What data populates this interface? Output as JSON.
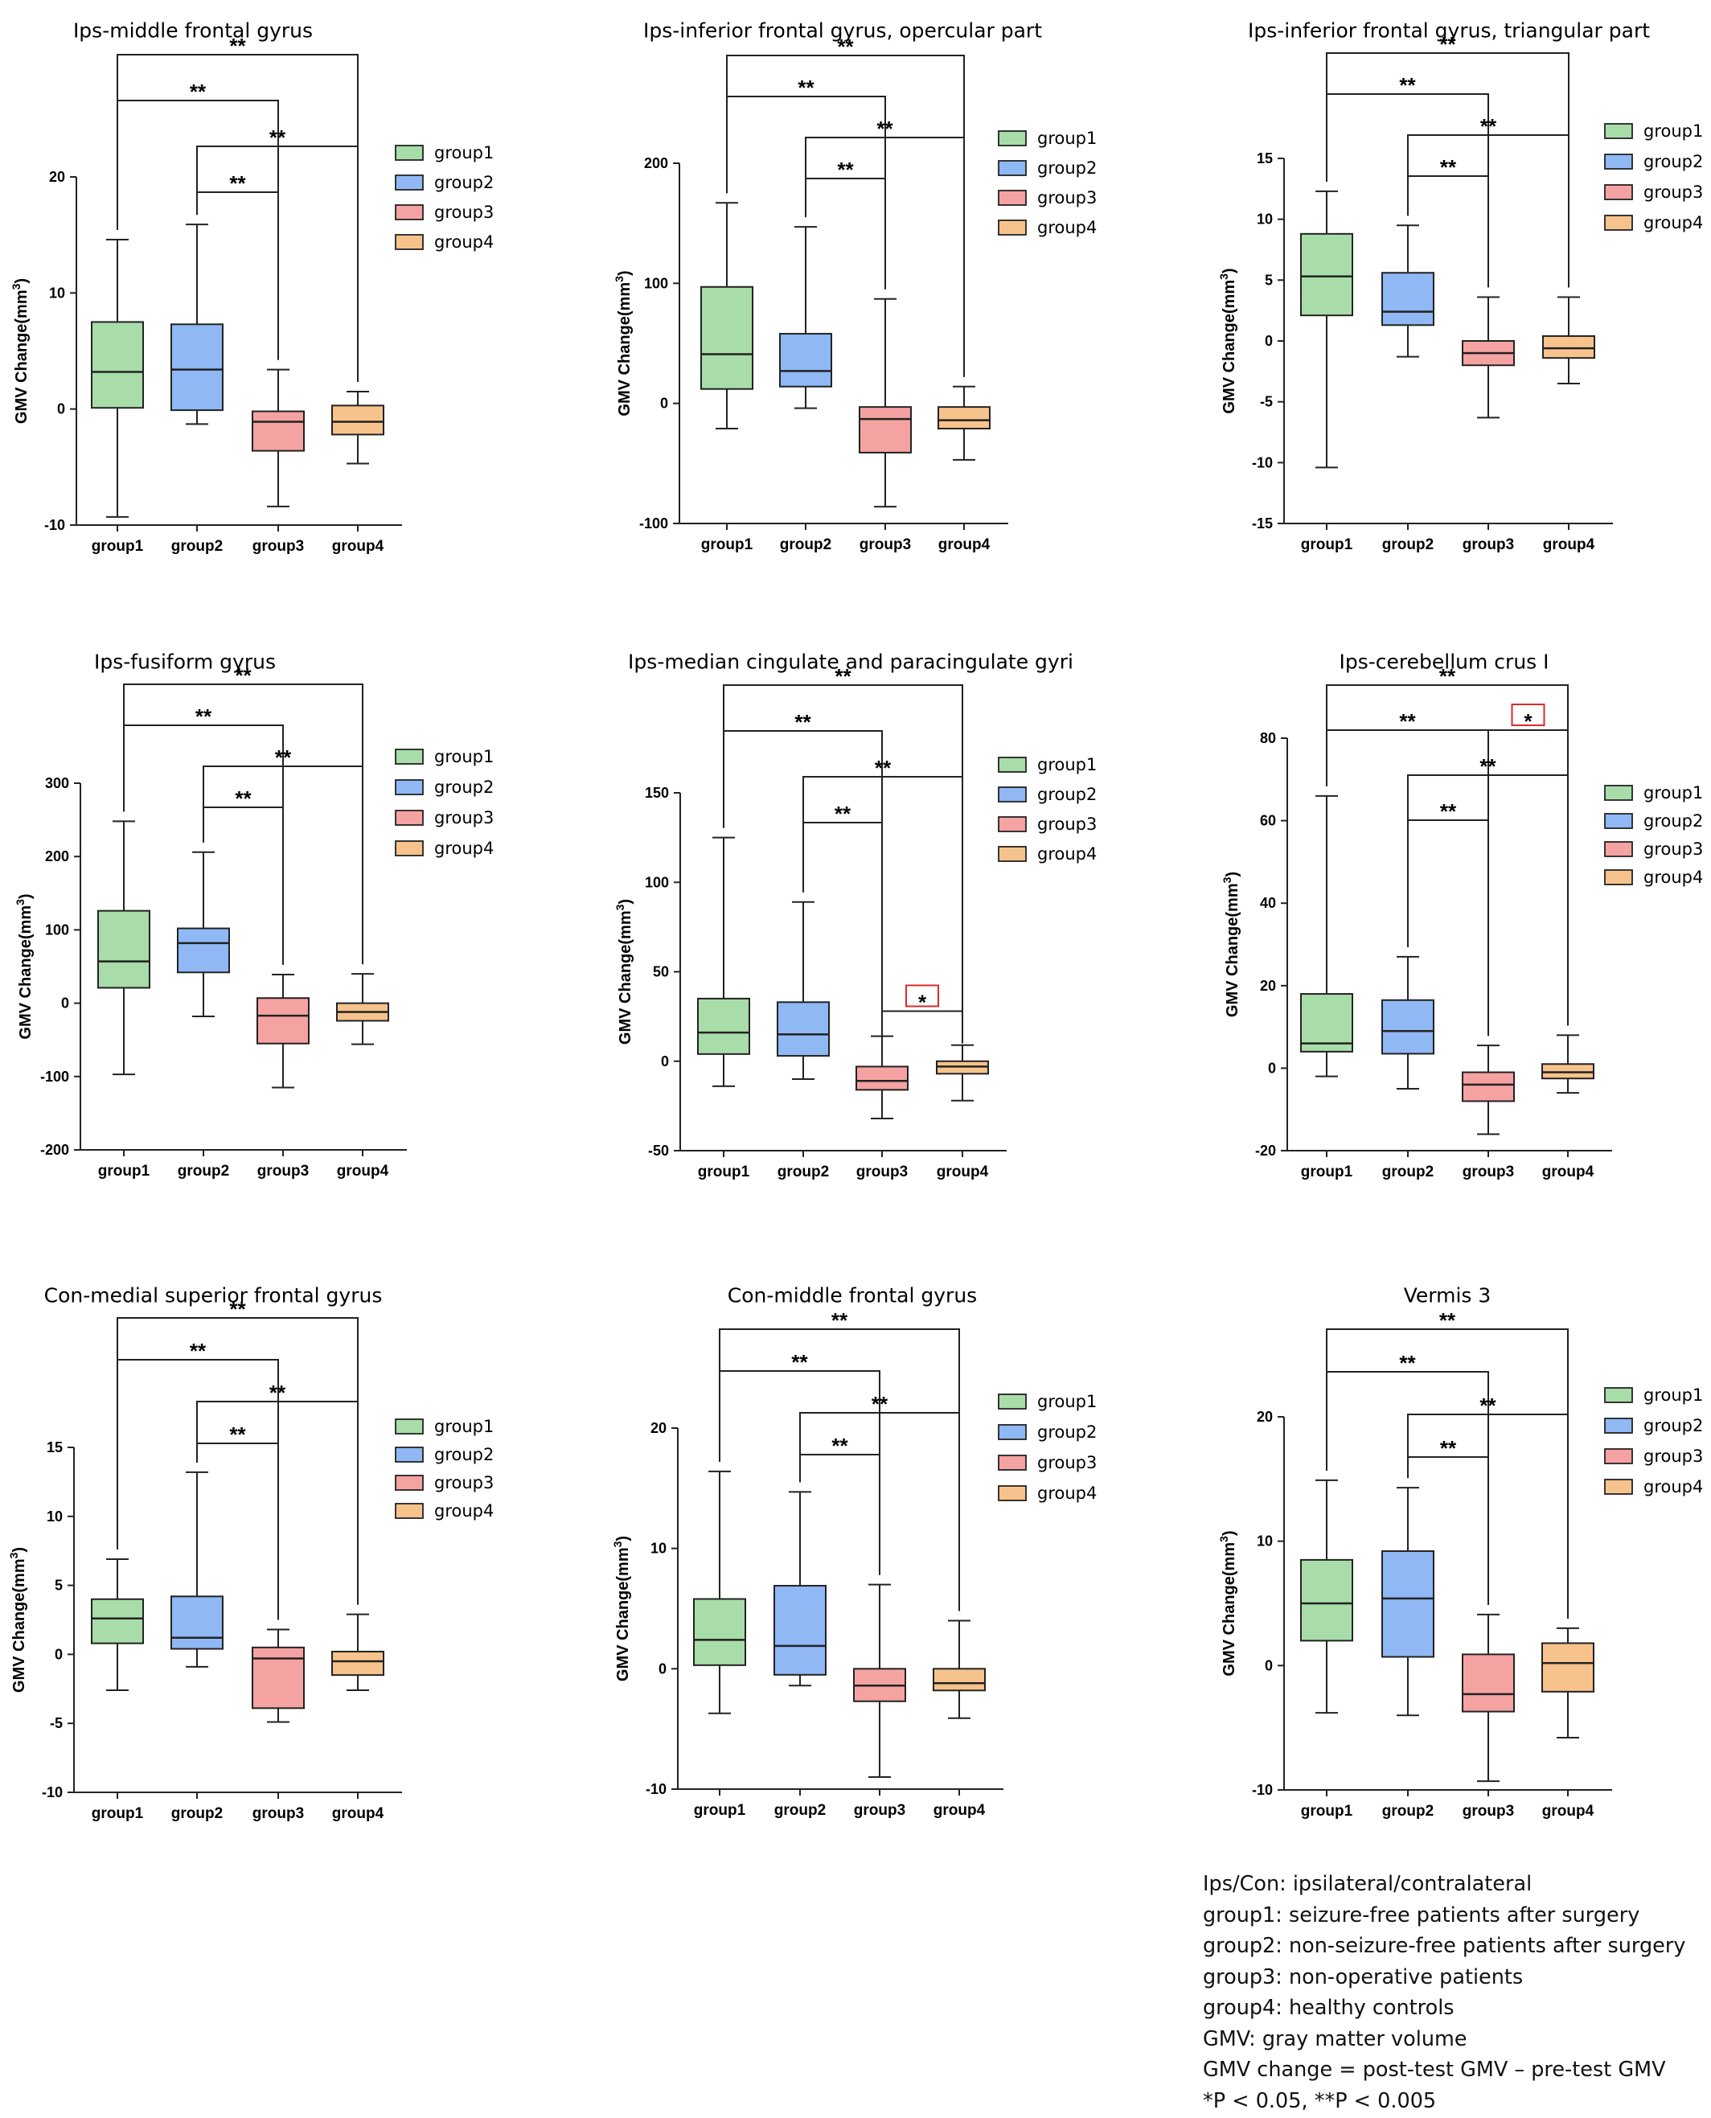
{
  "legend_labels": [
    "group1",
    "group2",
    "group3",
    "group4"
  ],
  "colors": {
    "group1": "#a8dca8",
    "group2": "#8fb8f4",
    "group3": "#f5a2a2",
    "group4": "#f7c38c",
    "significance_box": "#d92b2b"
  },
  "chart_data": [
    {
      "type": "box",
      "title": "Ips-middle frontal gyrus",
      "ylabel": "GMV Change(mm³)",
      "ylim": [
        -10,
        20
      ],
      "yticks": [
        -10,
        0,
        10,
        20
      ],
      "categories": [
        "group1",
        "group2",
        "group3",
        "group4"
      ],
      "boxes": [
        {
          "min": -9.3,
          "q1": 0.1,
          "median": 3.2,
          "q3": 7.5,
          "max": 14.6
        },
        {
          "min": -1.3,
          "q1": -0.1,
          "median": 3.4,
          "q3": 7.3,
          "max": 15.9
        },
        {
          "min": -8.4,
          "q1": -3.6,
          "median": -1.1,
          "q3": -0.2,
          "max": 3.4
        },
        {
          "min": -4.7,
          "q1": -2.2,
          "median": -1.1,
          "q3": 0.3,
          "max": 1.5
        }
      ],
      "significance": [
        {
          "from": "group1",
          "to": "group4",
          "label": "**"
        },
        {
          "from": "group1",
          "to": "group3",
          "label": "**"
        },
        {
          "from": "group2",
          "to": "group4",
          "label": "**"
        },
        {
          "from": "group2",
          "to": "group3",
          "label": "**"
        }
      ]
    },
    {
      "type": "box",
      "title": "Ips-inferior frontal gyrus, opercular part",
      "ylabel": "GMV Change(mm³)",
      "ylim": [
        -100,
        200
      ],
      "yticks": [
        -100,
        0,
        100,
        200
      ],
      "categories": [
        "group1",
        "group2",
        "group3",
        "group4"
      ],
      "boxes": [
        {
          "min": -21,
          "q1": 12,
          "median": 41,
          "q3": 97,
          "max": 167
        },
        {
          "min": -4,
          "q1": 14,
          "median": 27,
          "q3": 58,
          "max": 147
        },
        {
          "min": -86,
          "q1": -41,
          "median": -13,
          "q3": -3,
          "max": 87
        },
        {
          "min": -47,
          "q1": -21,
          "median": -14,
          "q3": -3,
          "max": 14
        }
      ],
      "significance": [
        {
          "from": "group1",
          "to": "group4",
          "label": "**"
        },
        {
          "from": "group1",
          "to": "group3",
          "label": "**"
        },
        {
          "from": "group2",
          "to": "group4",
          "label": "**"
        },
        {
          "from": "group2",
          "to": "group3",
          "label": "**"
        }
      ]
    },
    {
      "type": "box",
      "title": "Ips-inferior frontal gyrus, triangular  part",
      "ylabel": "GMV Change(mm³)",
      "ylim": [
        -15,
        15
      ],
      "yticks": [
        -15,
        -10,
        -5,
        0,
        5,
        10,
        15
      ],
      "categories": [
        "group1",
        "group2",
        "group3",
        "group4"
      ],
      "boxes": [
        {
          "min": -10.4,
          "q1": 2.1,
          "median": 5.3,
          "q3": 8.8,
          "max": 12.3
        },
        {
          "min": -1.3,
          "q1": 1.3,
          "median": 2.4,
          "q3": 5.6,
          "max": 9.5
        },
        {
          "min": -6.3,
          "q1": -2.0,
          "median": -1.0,
          "q3": 0.0,
          "max": 3.6
        },
        {
          "min": -3.5,
          "q1": -1.4,
          "median": -0.6,
          "q3": 0.4,
          "max": 3.6
        }
      ],
      "significance": [
        {
          "from": "group1",
          "to": "group4",
          "label": "**"
        },
        {
          "from": "group1",
          "to": "group3",
          "label": "**"
        },
        {
          "from": "group2",
          "to": "group4",
          "label": "**"
        },
        {
          "from": "group2",
          "to": "group3",
          "label": "**"
        }
      ]
    },
    {
      "type": "box",
      "title": "Ips-fusiform gyrus",
      "ylabel": "GMV Change(mm³)",
      "ylim": [
        -200,
        300
      ],
      "yticks": [
        -200,
        -100,
        0,
        100,
        200,
        300
      ],
      "categories": [
        "group1",
        "group2",
        "group3",
        "group4"
      ],
      "boxes": [
        {
          "min": -97,
          "q1": 21,
          "median": 57,
          "q3": 126,
          "max": 248
        },
        {
          "min": -18,
          "q1": 42,
          "median": 82,
          "q3": 102,
          "max": 206
        },
        {
          "min": -115,
          "q1": -55,
          "median": -17,
          "q3": 7,
          "max": 39
        },
        {
          "min": -56,
          "q1": -24,
          "median": -12,
          "q3": 0,
          "max": 40
        }
      ],
      "significance": [
        {
          "from": "group1",
          "to": "group4",
          "label": "**"
        },
        {
          "from": "group1",
          "to": "group3",
          "label": "**"
        },
        {
          "from": "group2",
          "to": "group4",
          "label": "**"
        },
        {
          "from": "group2",
          "to": "group3",
          "label": "**"
        }
      ]
    },
    {
      "type": "box",
      "title": "Ips-median cingulate and paracingulate gyri",
      "ylabel": "GMV Change(mm³)",
      "ylim": [
        -50,
        150
      ],
      "yticks": [
        -50,
        0,
        50,
        100,
        150
      ],
      "categories": [
        "group1",
        "group2",
        "group3",
        "group4"
      ],
      "boxes": [
        {
          "min": -14,
          "q1": 4,
          "median": 16,
          "q3": 35,
          "max": 125
        },
        {
          "min": -10,
          "q1": 3,
          "median": 15,
          "q3": 33,
          "max": 89
        },
        {
          "min": -32,
          "q1": -16,
          "median": -11,
          "q3": -3,
          "max": 14
        },
        {
          "min": -22,
          "q1": -7,
          "median": -3,
          "q3": 0,
          "max": 9
        }
      ],
      "significance": [
        {
          "from": "group1",
          "to": "group4",
          "label": "**"
        },
        {
          "from": "group1",
          "to": "group3",
          "label": "**"
        },
        {
          "from": "group2",
          "to": "group4",
          "label": "**"
        },
        {
          "from": "group2",
          "to": "group3",
          "label": "**"
        },
        {
          "from": "group3",
          "to": "group4",
          "label": "*",
          "boxed": true
        }
      ]
    },
    {
      "type": "box",
      "title": "Ips-cerebellum crus I",
      "ylabel": "GMV Change(mm³)",
      "ylim": [
        -20,
        80
      ],
      "yticks": [
        -20,
        0,
        20,
        40,
        60,
        80
      ],
      "categories": [
        "group1",
        "group2",
        "group3",
        "group4"
      ],
      "boxes": [
        {
          "min": -2,
          "q1": 4,
          "median": 6,
          "q3": 18,
          "max": 66
        },
        {
          "min": -5,
          "q1": 3.5,
          "median": 9,
          "q3": 16.5,
          "max": 27
        },
        {
          "min": -16,
          "q1": -8,
          "median": -4,
          "q3": -1,
          "max": 5.5
        },
        {
          "min": -6,
          "q1": -2.5,
          "median": -1,
          "q3": 1,
          "max": 8
        }
      ],
      "significance": [
        {
          "from": "group1",
          "to": "group4",
          "label": "**"
        },
        {
          "from": "group1",
          "to": "group3",
          "label": "**"
        },
        {
          "from": "group3",
          "to": "group4",
          "label": "*",
          "boxed": true
        },
        {
          "from": "group2",
          "to": "group4",
          "label": "**"
        },
        {
          "from": "group2",
          "to": "group3",
          "label": "**"
        }
      ]
    },
    {
      "type": "box",
      "title": "Con-medial superior frontal gyrus",
      "ylabel": "GMV Change(mm³)",
      "ylim": [
        -10,
        15
      ],
      "yticks": [
        -10,
        -5,
        0,
        5,
        10,
        15
      ],
      "categories": [
        "group1",
        "group2",
        "group3",
        "group4"
      ],
      "boxes": [
        {
          "min": -2.6,
          "q1": 0.8,
          "median": 2.6,
          "q3": 4.0,
          "max": 6.9
        },
        {
          "min": -0.9,
          "q1": 0.4,
          "median": 1.2,
          "q3": 4.2,
          "max": 13.2
        },
        {
          "min": -4.9,
          "q1": -3.9,
          "median": -0.3,
          "q3": 0.5,
          "max": 1.8
        },
        {
          "min": -2.6,
          "q1": -1.5,
          "median": -0.5,
          "q3": 0.2,
          "max": 2.9
        }
      ],
      "significance": [
        {
          "from": "group1",
          "to": "group4",
          "label": "**"
        },
        {
          "from": "group1",
          "to": "group3",
          "label": "**"
        },
        {
          "from": "group2",
          "to": "group4",
          "label": "**"
        },
        {
          "from": "group2",
          "to": "group3",
          "label": "**"
        }
      ]
    },
    {
      "type": "box",
      "title": "Con-middle frontal gyrus",
      "ylabel": "GMV Change(mm³)",
      "ylim": [
        -10,
        20
      ],
      "yticks": [
        -10,
        0,
        10,
        20
      ],
      "categories": [
        "group1",
        "group2",
        "group3",
        "group4"
      ],
      "boxes": [
        {
          "min": -3.7,
          "q1": 0.3,
          "median": 2.4,
          "q3": 5.8,
          "max": 16.4
        },
        {
          "min": -1.4,
          "q1": -0.5,
          "median": 1.9,
          "q3": 6.9,
          "max": 14.7
        },
        {
          "min": -9.0,
          "q1": -2.7,
          "median": -1.4,
          "q3": 0.0,
          "max": 7.0
        },
        {
          "min": -4.1,
          "q1": -1.8,
          "median": -1.2,
          "q3": 0.0,
          "max": 4.0
        }
      ],
      "significance": [
        {
          "from": "group1",
          "to": "group4",
          "label": "**"
        },
        {
          "from": "group1",
          "to": "group3",
          "label": "**"
        },
        {
          "from": "group2",
          "to": "group4",
          "label": "**"
        },
        {
          "from": "group2",
          "to": "group3",
          "label": "**"
        }
      ]
    },
    {
      "type": "box",
      "title": "Vermis 3",
      "ylabel": "GMV Change(mm³)",
      "ylim": [
        -10,
        20
      ],
      "yticks": [
        -10,
        0,
        10,
        20
      ],
      "categories": [
        "group1",
        "group2",
        "group3",
        "group4"
      ],
      "boxes": [
        {
          "min": -3.8,
          "q1": 2.0,
          "median": 5.0,
          "q3": 8.5,
          "max": 14.9
        },
        {
          "min": -4.0,
          "q1": 0.7,
          "median": 5.4,
          "q3": 9.2,
          "max": 14.3
        },
        {
          "min": -9.3,
          "q1": -3.7,
          "median": -2.3,
          "q3": 0.9,
          "max": 4.1
        },
        {
          "min": -5.8,
          "q1": -2.1,
          "median": 0.2,
          "q3": 1.8,
          "max": 3.0
        }
      ],
      "significance": [
        {
          "from": "group1",
          "to": "group4",
          "label": "**"
        },
        {
          "from": "group1",
          "to": "group3",
          "label": "**"
        },
        {
          "from": "group2",
          "to": "group4",
          "label": "**"
        },
        {
          "from": "group2",
          "to": "group3",
          "label": "**"
        }
      ]
    }
  ],
  "notes": [
    "Ips/Con: ipsilateral/contralateral",
    "group1: seizure-free patients after surgery",
    "group2: non-seizure-free patients after surgery",
    "group3: non-operative patients",
    "group4: healthy controls",
    "GMV: gray matter volume",
    "GMV change = post-test GMV – pre-test GMV",
    "*P < 0.05, **P < 0.005"
  ]
}
